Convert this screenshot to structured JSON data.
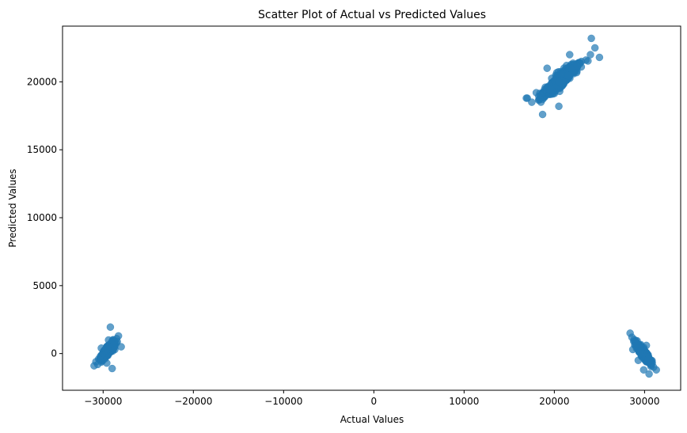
{
  "chart_data": {
    "type": "scatter",
    "title": "Scatter Plot of Actual vs Predicted Values",
    "xlabel": "Actual Values",
    "ylabel": "Predicted Values",
    "xlim": [
      -34500,
      34000
    ],
    "ylim": [
      -2700,
      24100
    ],
    "x_ticks": [
      -30000,
      -20000,
      -10000,
      0,
      10000,
      20000,
      30000
    ],
    "x_tick_labels": [
      "−30000",
      "−20000",
      "−10000",
      "0",
      "10000",
      "20000",
      "30000"
    ],
    "y_ticks": [
      0,
      5000,
      10000,
      15000,
      20000
    ],
    "y_tick_labels": [
      "0",
      "5000",
      "10000",
      "15000",
      "20000"
    ],
    "grid": false,
    "legend": "none",
    "marker_color": "#1f77b4",
    "marker_alpha": 0.7,
    "clusters": [
      {
        "x_range": [
          -31200,
          -27800
        ],
        "y_range": [
          -1100,
          2000
        ],
        "center": [
          -29500,
          200
        ],
        "trend": "positive",
        "points": [
          [
            -31000,
            -900
          ],
          [
            -30800,
            -600
          ],
          [
            -30500,
            -400
          ],
          [
            -30300,
            -200
          ],
          [
            -30000,
            0
          ],
          [
            -29800,
            200
          ],
          [
            -29500,
            300
          ],
          [
            -29300,
            500
          ],
          [
            -29000,
            700
          ],
          [
            -28800,
            900
          ],
          [
            -28500,
            1100
          ],
          [
            -28300,
            1300
          ],
          [
            -29200,
            1950
          ],
          [
            -29000,
            -1100
          ],
          [
            -28000,
            500
          ],
          [
            -29600,
            -700
          ],
          [
            -30200,
            400
          ],
          [
            -28700,
            300
          ],
          [
            -29400,
            1000
          ],
          [
            -30600,
            -800
          ]
        ]
      },
      {
        "x_range": [
          16800,
          25000
        ],
        "y_range": [
          17600,
          23200
        ],
        "center": [
          20800,
          20200
        ],
        "trend": "positive",
        "points": [
          [
            17000,
            18800
          ],
          [
            17500,
            18500
          ],
          [
            18000,
            19200
          ],
          [
            18500,
            19000
          ],
          [
            19000,
            19600
          ],
          [
            19500,
            19400
          ],
          [
            20000,
            20100
          ],
          [
            20500,
            20000
          ],
          [
            21000,
            20600
          ],
          [
            21500,
            20500
          ],
          [
            22000,
            21000
          ],
          [
            22500,
            21200
          ],
          [
            23000,
            21500
          ],
          [
            23500,
            21600
          ],
          [
            24000,
            22000
          ],
          [
            24500,
            22500
          ],
          [
            24100,
            23200
          ],
          [
            18700,
            17600
          ],
          [
            20500,
            18200
          ],
          [
            16900,
            18800
          ],
          [
            25000,
            21800
          ],
          [
            19200,
            21000
          ],
          [
            21700,
            22000
          ]
        ]
      },
      {
        "x_range": [
          28200,
          31500
        ],
        "y_range": [
          -1500,
          1600
        ],
        "center": [
          29900,
          0
        ],
        "trend": "negative",
        "points": [
          [
            28400,
            1500
          ],
          [
            28600,
            1200
          ],
          [
            28800,
            900
          ],
          [
            29000,
            600
          ],
          [
            29200,
            400
          ],
          [
            29500,
            200
          ],
          [
            29800,
            0
          ],
          [
            30100,
            -200
          ],
          [
            30400,
            -400
          ],
          [
            30700,
            -700
          ],
          [
            31000,
            -1000
          ],
          [
            31300,
            -1200
          ],
          [
            29900,
            -1200
          ],
          [
            30500,
            -1500
          ],
          [
            28700,
            300
          ],
          [
            29300,
            -500
          ],
          [
            30200,
            600
          ]
        ]
      }
    ]
  }
}
